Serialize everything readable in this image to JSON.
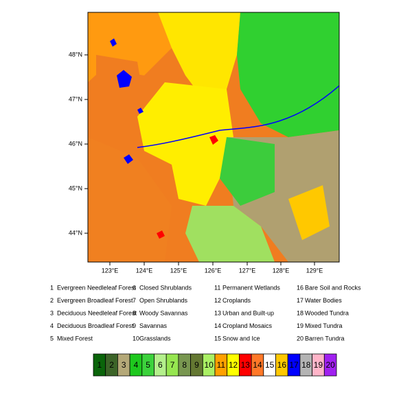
{
  "map": {
    "lon_ticks": [
      "123°E",
      "124°E",
      "125°E",
      "126°E",
      "127°E",
      "128°E",
      "129°E"
    ],
    "lat_ticks": [
      "48°N",
      "47°N",
      "46°N",
      "45°N",
      "44°N"
    ],
    "classes": [
      {
        "id": 1,
        "name": "Evergreen Needleleaf Forest",
        "color": "#0a640a"
      },
      {
        "id": 2,
        "name": "Evergreen Broadleaf Forest",
        "color": "#3c6428"
      },
      {
        "id": 3,
        "name": "Deciduous Needleleaf Forest",
        "color": "#b4a878"
      },
      {
        "id": 4,
        "name": "Deciduous Broadleaf Forest",
        "color": "#1ec81e"
      },
      {
        "id": 5,
        "name": "Mixed Forest",
        "color": "#3cd23c"
      },
      {
        "id": 6,
        "name": "Closed Shrublands",
        "color": "#b4f08c"
      },
      {
        "id": 7,
        "name": "Open Shrublands",
        "color": "#96e650"
      },
      {
        "id": 8,
        "name": "Woody Savannas",
        "color": "#789650"
      },
      {
        "id": 9,
        "name": "Savannas",
        "color": "#647832"
      },
      {
        "id": 10,
        "name": "Grasslands",
        "color": "#aaf064"
      },
      {
        "id": 11,
        "name": "Permanent Wetlands",
        "color": "#ffa000"
      },
      {
        "id": 12,
        "name": "Croplands",
        "color": "#ffff00"
      },
      {
        "id": 13,
        "name": "Urban and Built-up",
        "color": "#ff0000"
      },
      {
        "id": 14,
        "name": "Cropland Mosaics",
        "color": "#ff7828"
      },
      {
        "id": 15,
        "name": "Snow and Ice",
        "color": "#ffffff"
      },
      {
        "id": 16,
        "name": "Bare Soil and Rocks",
        "color": "#ffc800"
      },
      {
        "id": 17,
        "name": "Water Bodies",
        "color": "#0000ff"
      },
      {
        "id": 18,
        "name": "Wooded Tundra",
        "color": "#b4b4b4"
      },
      {
        "id": 19,
        "name": "Mixed Tundra",
        "color": "#ffb4c8"
      },
      {
        "id": 20,
        "name": "Barren Tundra",
        "color": "#a020f0"
      }
    ]
  }
}
